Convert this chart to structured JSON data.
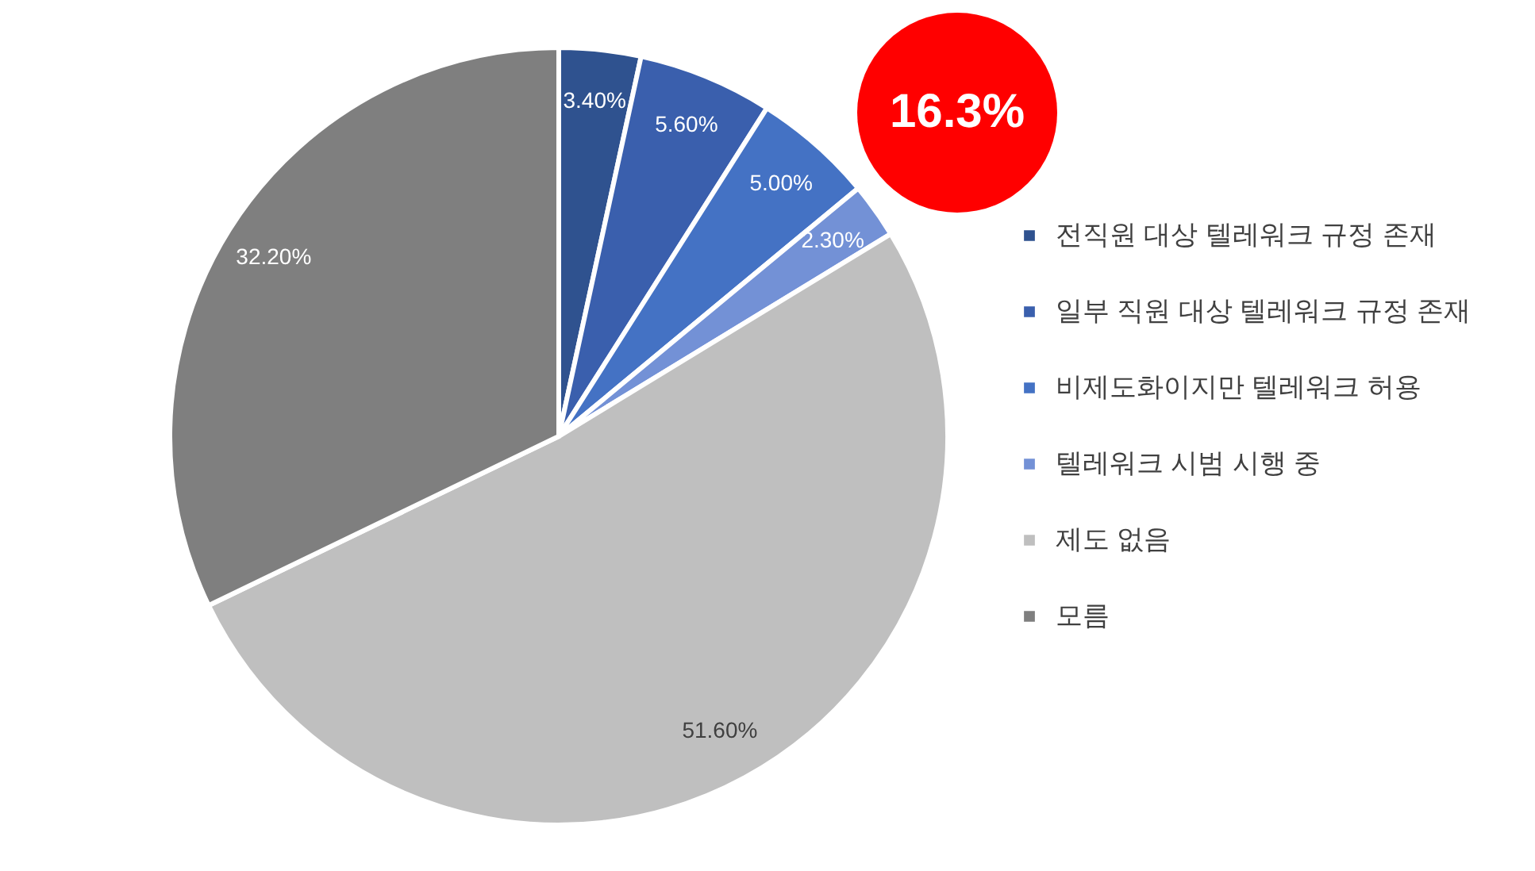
{
  "chart_data": {
    "type": "pie",
    "categories": [
      "전직원 대상 텔레워크 규정 존재",
      "일부 직원 대상 텔레워크 규정 존재",
      "비제도화이지만 텔레워크 허용",
      "텔레워크 시범 시행 중",
      "제도 없음",
      "모름"
    ],
    "values": [
      3.4,
      5.6,
      5.0,
      2.3,
      51.6,
      32.2
    ],
    "value_labels": [
      "3.40%",
      "5.60%",
      "5.00%",
      "2.30%",
      "51.60%",
      "32.20%"
    ],
    "colors": [
      "#2f528f",
      "#3a5fad",
      "#4472c4",
      "#7391d6",
      "#bfbfbf",
      "#7f7f7f"
    ],
    "legend": "right",
    "annotations": [
      "16.3%"
    ]
  }
}
